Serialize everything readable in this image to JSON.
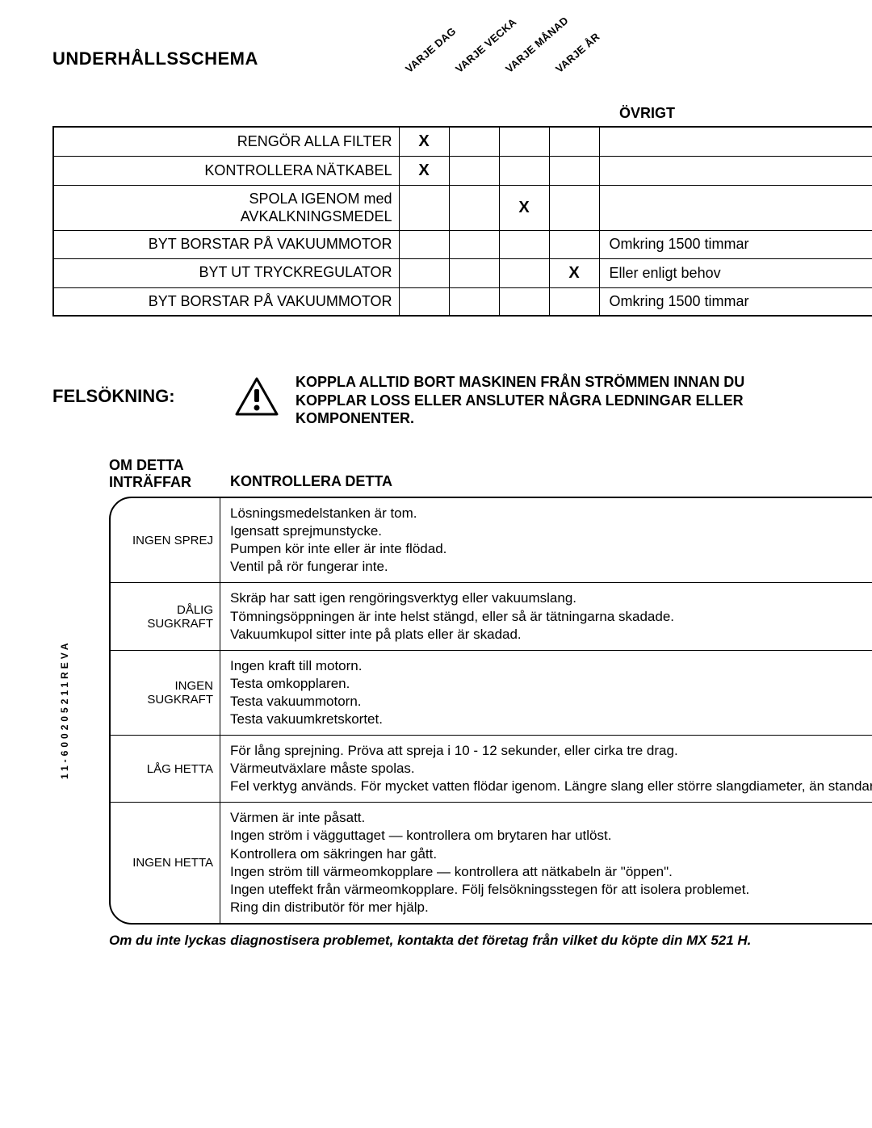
{
  "maint": {
    "title": "UNDERHÅLLSSCHEMA",
    "diag_headers": [
      "VARJE DAG",
      "VARJE VECKA",
      "VARJE MÅNAD",
      "VARJE ÅR"
    ],
    "other_header": "ÖVRIGT",
    "rows": [
      {
        "task": "RENGÖR ALLA FILTER",
        "marks": [
          "X",
          "",
          "",
          ""
        ],
        "other": ""
      },
      {
        "task": "KONTROLLERA NÄTKABEL",
        "marks": [
          "X",
          "",
          "",
          ""
        ],
        "other": ""
      },
      {
        "task": "SPOLA IGENOM med\nAVKALKNINGSMEDEL",
        "marks": [
          "",
          "",
          "X",
          ""
        ],
        "other": ""
      },
      {
        "task": "BYT BORSTAR PÅ VAKUUMMOTOR",
        "marks": [
          "",
          "",
          "",
          ""
        ],
        "other": "Omkring 1500 timmar"
      },
      {
        "task": "BYT UT TRYCKREGULATOR",
        "marks": [
          "",
          "",
          "",
          "X"
        ],
        "other": "Eller enligt behov"
      },
      {
        "task": "BYT BORSTAR PÅ VAKUUMMOTOR",
        "marks": [
          "",
          "",
          "",
          ""
        ],
        "other": "Omkring 1500 timmar"
      }
    ]
  },
  "trouble": {
    "title": "FELSÖKNING:",
    "warning": "KOPPLA ALLTID BORT MASKINEN FRÅN STRÖMMEN INNAN DU KOPPLAR LOSS ELLER ANSLUTER NÅGRA LEDNINGAR ELLER KOMPONENTER.",
    "col_left": "OM DETTA\nINTRÄFFAR",
    "col_right": "KONTROLLERA DETTA",
    "rows": [
      {
        "label": "INGEN SPREJ",
        "text": "Lösningsmedelstanken är tom.\nIgensatt sprejmunstycke.\nPumpen kör inte eller är inte flödad.\nVentil på rör fungerar inte."
      },
      {
        "label": "DÅLIG SUGKRAFT",
        "text": "Skräp har satt igen rengöringsverktyg eller vakuumslang.\nTömningsöppningen är inte helst stängd, eller så är tätningarna skadade.\nVakuumkupol sitter inte på plats eller är skadad."
      },
      {
        "label": "INGEN SUGKRAFT",
        "text": "Ingen kraft till motorn.\nTesta omkopplaren.\nTesta vakuummotorn.\nTesta vakuumkretskortet."
      },
      {
        "label": "LÅG HETTA",
        "text": "För lång sprejning. Pröva att spreja i 10 - 12 sekunder, eller cirka tre drag.\nVärmeutväxlare måste spolas.\nFel verktyg används.  För mycket vatten flödar igenom. Längre slang eller större slangdiameter, än standard."
      },
      {
        "label": "INGEN HETTA",
        "text": "Värmen är inte påsatt.\nIngen ström i vägguttaget — kontrollera om brytaren har utlöst.\nKontrollera om säkringen har gått.\nIngen ström till värmeomkopplare — kontrollera att nätkabeln är \"öppen\".\nIngen uteffekt från värmeomkopplare. Följ felsökningsstegen för att isolera problemet.\nRing din distributör för mer hjälp."
      }
    ],
    "footnote": "Om du inte lyckas diagnostisera problemet, kontakta det företag från vilket du köpte din MX 521 H."
  },
  "side_code": "11-600205211REVA"
}
